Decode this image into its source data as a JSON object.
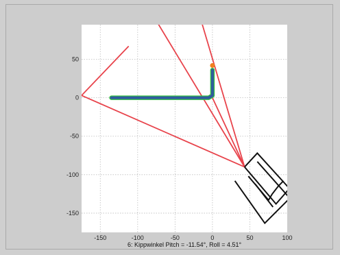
{
  "figure": {
    "background": "#cdcdcd",
    "axes_background": "#ffffff"
  },
  "chart_data": {
    "type": "line",
    "title": "",
    "xlabel": "6: Kippwinkel Pitch = -11.54°, Roll =  4.51°",
    "ylabel": "",
    "xlim": [
      -175,
      100
    ],
    "ylim": [
      -175,
      95
    ],
    "x_ticks": [
      -150,
      -100,
      -50,
      0,
      50,
      100
    ],
    "y_ticks": [
      50,
      0,
      -50,
      -100,
      -150
    ],
    "x_tick_labels": [
      "-150",
      "-100",
      "-50",
      "0",
      "50",
      "100"
    ],
    "y_tick_labels": [
      "50",
      "0",
      "-50",
      "-100",
      "-150"
    ],
    "grid": true,
    "colors": {
      "field_of_view": "#e8434b",
      "vehicle": "#111111",
      "path_outline": "#35c040",
      "path_fill": "#2f5c9e",
      "marker": "#f08020"
    },
    "series": [
      {
        "kind": "field_of_view",
        "color": "#e8434b",
        "segments": [
          [
            [
              43,
              -90
            ],
            [
              -175,
              3
            ]
          ],
          [
            [
              43,
              -90
            ],
            [
              -75,
              100
            ]
          ],
          [
            [
              43,
              -90
            ],
            [
              -15,
              100
            ]
          ],
          [
            [
              43,
              -90
            ],
            [
              0,
              0
            ]
          ],
          [
            [
              -175,
              3
            ],
            [
              -112,
              67
            ]
          ]
        ]
      },
      {
        "kind": "vehicle",
        "color": "#111111",
        "polygons": [
          [
            [
              43,
              -90
            ],
            [
              60,
              -72
            ],
            [
              103,
              -118
            ],
            [
              85,
              -138
            ],
            [
              43,
              -90
            ]
          ],
          [
            [
              30,
              -108
            ],
            [
              70,
              -163
            ],
            [
              103,
              -131
            ]
          ],
          [
            [
              60,
              -83
            ],
            [
              103,
              -130
            ]
          ],
          [
            [
              48,
              -102
            ],
            [
              75,
              -133
            ],
            [
              80,
              -125
            ],
            [
              88,
              -115
            ],
            [
              95,
              -108
            ]
          ],
          [
            [
              57,
              -112
            ],
            [
              81,
              -142
            ]
          ]
        ]
      },
      {
        "kind": "path",
        "color": "#2f5c9e",
        "points": [
          [
            -135,
            0
          ],
          [
            -5,
            0
          ],
          [
            0,
            3
          ],
          [
            0,
            10
          ],
          [
            0,
            20
          ],
          [
            0,
            30
          ],
          [
            0,
            36
          ]
        ]
      },
      {
        "kind": "marker",
        "color": "#f08020",
        "points": [
          [
            0,
            42
          ]
        ]
      }
    ]
  }
}
